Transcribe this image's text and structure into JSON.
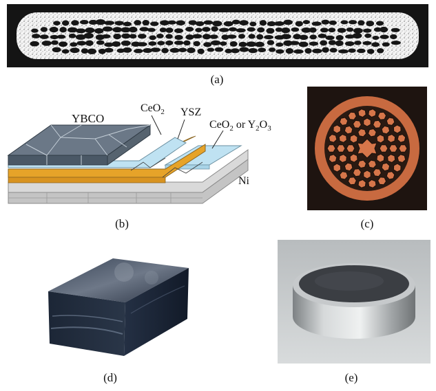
{
  "figure": {
    "panels": [
      {
        "id": "a",
        "caption": "(a)",
        "description_icon": "tape-cross-section-micrograph"
      },
      {
        "id": "b",
        "caption": "(b)",
        "description_icon": "coated-conductor-layer-diagram",
        "labels": {
          "ybco": "YBCO",
          "ceo2_prefix": "CeO",
          "ceo2_sub": "2",
          "ysz": "YSZ",
          "buffer_a": "CeO",
          "buffer_a_sub": "2",
          "buffer_or": " or Y",
          "buffer_b_sub": "2",
          "buffer_b_tail": "O",
          "buffer_b_sub2": "3",
          "ni": "Ni"
        }
      },
      {
        "id": "c",
        "caption": "(c)",
        "description_icon": "round-wire-cross-section"
      },
      {
        "id": "d",
        "caption": "(d)",
        "description_icon": "bulk-block-photo"
      },
      {
        "id": "e",
        "caption": "(e)",
        "description_icon": "bulk-disk-photo"
      }
    ],
    "colors": {
      "ybco_top": "#5d6b7a",
      "ybco_front": "#4a5866",
      "ceo2": "#bfe2f2",
      "ysz": "#e6a329",
      "ni": "#cfcfcf",
      "copper": "#d6764a"
    }
  }
}
